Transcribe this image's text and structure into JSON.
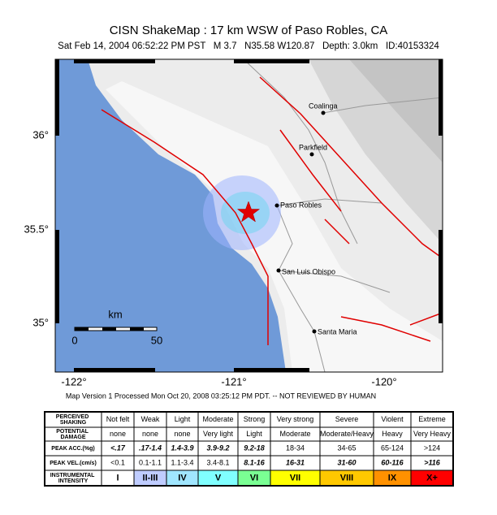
{
  "header": {
    "title": "CISN ShakeMap : 17 km WSW of Paso Robles, CA",
    "subtitle": "Sat Feb 14, 2004 06:52:22 PM PST   M 3.7   N35.58 W120.87   Depth: 3.0km   ID:40153324"
  },
  "map": {
    "lat_labels": [
      "36°",
      "35.5°",
      "35°"
    ],
    "lon_labels": [
      "-122°",
      "-121°",
      "-120°"
    ],
    "cities": [
      "Coalinga",
      "Parkfield",
      "Paso Robles",
      "San Luis Obispo",
      "Santa Maria"
    ],
    "scale": {
      "unit": "km",
      "labels": [
        "0",
        "50"
      ]
    }
  },
  "caption": "Map Version 1 Processed Mon Oct 20, 2008 03:25:12 PM PDT. -- NOT REVIEWED BY HUMAN",
  "table": {
    "row_labels": [
      "PERCEIVED SHAKING",
      "POTENTIAL DAMAGE",
      "PEAK ACC.(%g)",
      "PEAK VEL.(cm/s)",
      "INSTRUMENTAL INTENSITY"
    ],
    "rows": [
      [
        "Not felt",
        "Weak",
        "Light",
        "Moderate",
        "Strong",
        "Very strong",
        "Severe",
        "Violent",
        "Extreme"
      ],
      [
        "none",
        "none",
        "none",
        "Very light",
        "Light",
        "Moderate",
        "Moderate/Heavy",
        "Heavy",
        "Very Heavy"
      ],
      [
        "<.17",
        ".17-1.4",
        "1.4-3.9",
        "3.9-9.2",
        "9.2-18",
        "18-34",
        "34-65",
        "65-124",
        ">124"
      ],
      [
        "<0.1",
        "0.1-1.1",
        "1.1-3.4",
        "3.4-8.1",
        "8.1-16",
        "16-31",
        "31-60",
        "60-116",
        ">116"
      ],
      [
        "I",
        "II-III",
        "IV",
        "V",
        "VI",
        "VII",
        "VIII",
        "IX",
        "X+"
      ]
    ]
  }
}
